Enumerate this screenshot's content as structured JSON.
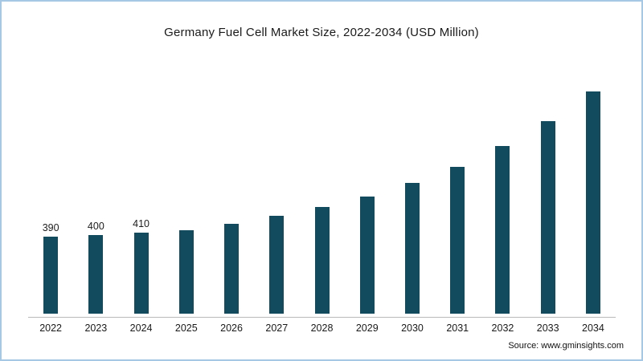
{
  "chart_data": {
    "type": "bar",
    "title": "Germany Fuel Cell Market Size, 2022-2034 (USD Million)",
    "categories": [
      "2022",
      "2023",
      "2024",
      "2025",
      "2026",
      "2027",
      "2028",
      "2029",
      "2030",
      "2031",
      "2032",
      "2033",
      "2034"
    ],
    "values": [
      390,
      400,
      410,
      425,
      455,
      495,
      540,
      595,
      665,
      745,
      850,
      975,
      1135
    ],
    "data_labels": [
      "390",
      "400",
      "410",
      "",
      "",
      "",
      "",
      "",
      "",
      "",
      "",
      "",
      ""
    ],
    "xlabel": "",
    "ylabel": "",
    "ylim": [
      0,
      1200
    ],
    "grid": false,
    "legend_position": "none",
    "bar_color": "#134b5e"
  },
  "footer": {
    "source": "Source: www.gminsights.com"
  }
}
